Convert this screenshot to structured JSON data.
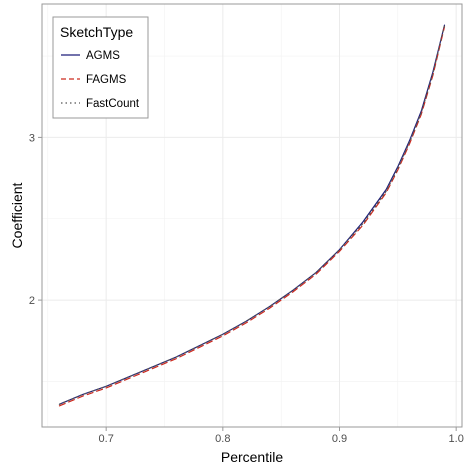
{
  "chart_data": {
    "type": "line",
    "xlabel": "Percentile",
    "ylabel": "Coefficient",
    "xlim": [
      0.645,
      1.005
    ],
    "ylim": [
      1.22,
      3.82
    ],
    "x_ticks": [
      0.7,
      0.8,
      0.9,
      1.0
    ],
    "x_tick_labels": [
      "0.7",
      "0.8",
      "0.9",
      "1.0"
    ],
    "y_ticks": [
      2,
      3
    ],
    "y_tick_labels": [
      "2",
      "3"
    ],
    "y_minor_ticks": [
      1.5,
      2.5,
      3.5
    ],
    "x_minor_ticks": [
      0.65,
      0.75,
      0.85,
      0.95
    ],
    "grid": true,
    "legend": {
      "title": "SketchType",
      "position": "top-left"
    },
    "x": [
      0.66,
      0.68,
      0.7,
      0.72,
      0.74,
      0.76,
      0.78,
      0.8,
      0.82,
      0.84,
      0.86,
      0.88,
      0.9,
      0.92,
      0.94,
      0.95,
      0.96,
      0.97,
      0.98,
      0.99
    ],
    "series": [
      {
        "name": "AGMS",
        "color": "#1f1f7a",
        "dash": "solid",
        "values": [
          1.36,
          1.42,
          1.47,
          1.53,
          1.59,
          1.65,
          1.72,
          1.79,
          1.87,
          1.96,
          2.06,
          2.17,
          2.31,
          2.48,
          2.68,
          2.82,
          2.98,
          3.16,
          3.4,
          3.69
        ]
      },
      {
        "name": "FAGMS",
        "color": "#cc2a1e",
        "dash": "dashed",
        "values": [
          1.35,
          1.41,
          1.46,
          1.52,
          1.58,
          1.64,
          1.71,
          1.78,
          1.86,
          1.95,
          2.05,
          2.16,
          2.3,
          2.46,
          2.66,
          2.8,
          2.96,
          3.14,
          3.38,
          3.68
        ]
      },
      {
        "name": "FastCount",
        "color": "#555555",
        "dash": "dotted",
        "values": [
          1.36,
          1.42,
          1.47,
          1.53,
          1.59,
          1.65,
          1.72,
          1.79,
          1.87,
          1.96,
          2.06,
          2.17,
          2.31,
          2.47,
          2.67,
          2.81,
          2.97,
          3.15,
          3.39,
          3.69
        ]
      }
    ]
  }
}
